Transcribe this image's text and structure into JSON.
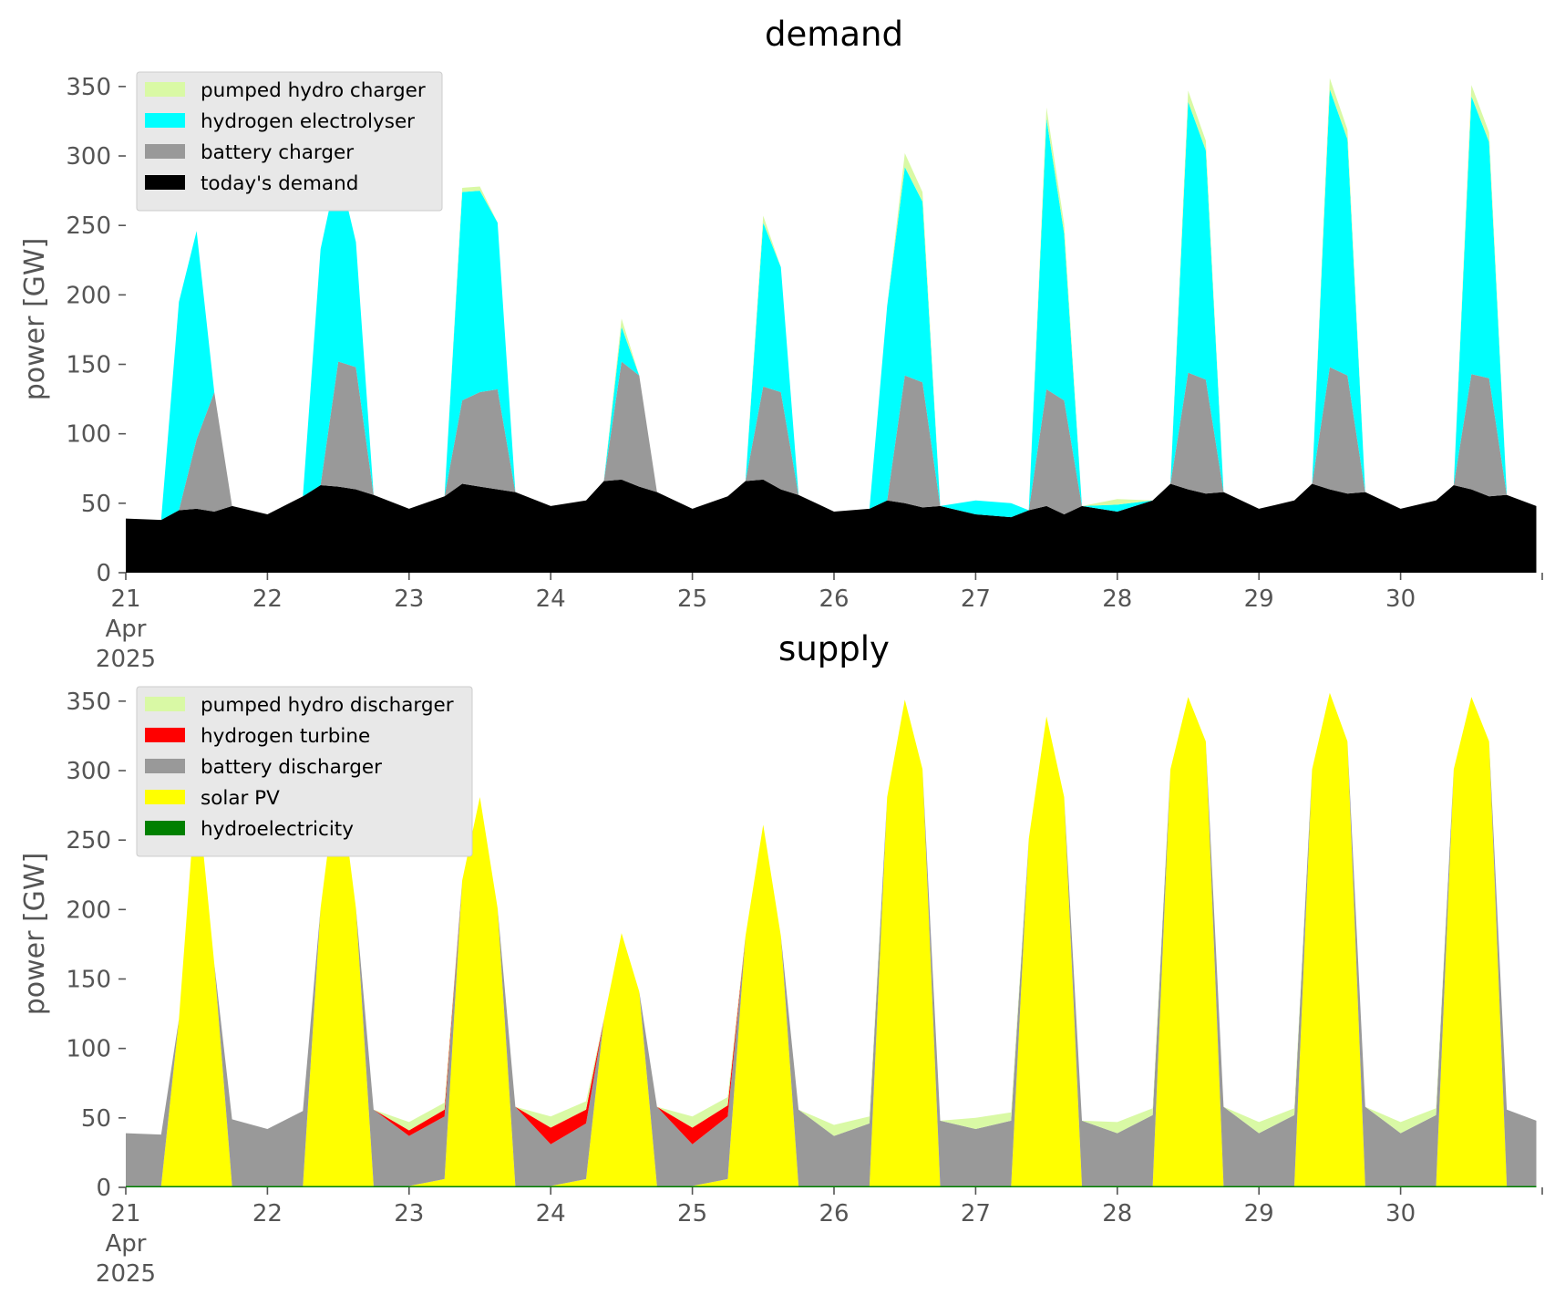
{
  "chart_data": [
    {
      "type": "area",
      "stacked": true,
      "title": "demand",
      "ylabel": "power [GW]",
      "xlabel": "",
      "ylim": [
        0,
        365
      ],
      "yticks": [
        "0",
        "50",
        "100",
        "150",
        "200",
        "250",
        "300",
        "350"
      ],
      "xticks": [
        "21",
        "22",
        "23",
        "24",
        "25",
        "26",
        "27",
        "28",
        "29",
        "30"
      ],
      "xtick_extra": [
        "Apr",
        "2025"
      ],
      "legend_position": "top-left",
      "x": [
        "21 Apr 00:00",
        "21 Apr 06:00",
        "21 Apr 09:00",
        "21 Apr 12:00",
        "21 Apr 15:00",
        "21 Apr 18:00",
        "22 Apr 00:00",
        "22 Apr 06:00",
        "22 Apr 09:00",
        "22 Apr 12:00",
        "22 Apr 15:00",
        "22 Apr 18:00",
        "23 Apr 00:00",
        "23 Apr 06:00",
        "23 Apr 09:00",
        "23 Apr 12:00",
        "23 Apr 15:00",
        "23 Apr 18:00",
        "24 Apr 00:00",
        "24 Apr 06:00",
        "24 Apr 09:00",
        "24 Apr 12:00",
        "24 Apr 15:00",
        "24 Apr 18:00",
        "25 Apr 00:00",
        "25 Apr 06:00",
        "25 Apr 09:00",
        "25 Apr 12:00",
        "25 Apr 15:00",
        "25 Apr 18:00",
        "26 Apr 00:00",
        "26 Apr 06:00",
        "26 Apr 09:00",
        "26 Apr 12:00",
        "26 Apr 15:00",
        "26 Apr 18:00",
        "27 Apr 00:00",
        "27 Apr 06:00",
        "27 Apr 09:00",
        "27 Apr 12:00",
        "27 Apr 15:00",
        "27 Apr 18:00",
        "28 Apr 00:00",
        "28 Apr 06:00",
        "28 Apr 09:00",
        "28 Apr 12:00",
        "28 Apr 15:00",
        "28 Apr 18:00",
        "29 Apr 00:00",
        "29 Apr 06:00",
        "29 Apr 09:00",
        "29 Apr 12:00",
        "29 Apr 15:00",
        "29 Apr 18:00",
        "30 Apr 00:00",
        "30 Apr 06:00",
        "30 Apr 09:00",
        "30 Apr 12:00",
        "30 Apr 15:00",
        "30 Apr 18:00",
        "30 Apr 23:00"
      ],
      "series": [
        {
          "name": "today's demand",
          "color": "#000000",
          "values": [
            39,
            38,
            45,
            46,
            44,
            48,
            42,
            55,
            63,
            62,
            60,
            56,
            46,
            55,
            64,
            62,
            60,
            58,
            48,
            52,
            66,
            67,
            62,
            58,
            46,
            55,
            66,
            67,
            60,
            56,
            44,
            46,
            52,
            50,
            47,
            48,
            42,
            40,
            45,
            48,
            42,
            48,
            44,
            52,
            64,
            60,
            57,
            58,
            46,
            52,
            64,
            60,
            57,
            58,
            46,
            52,
            63,
            60,
            55,
            56,
            48
          ]
        },
        {
          "name": "battery charger",
          "color": "#999999",
          "values": [
            0,
            0,
            0,
            50,
            86,
            0,
            0,
            0,
            0,
            90,
            88,
            0,
            0,
            0,
            60,
            68,
            72,
            0,
            0,
            0,
            0,
            85,
            80,
            0,
            0,
            0,
            0,
            67,
            70,
            0,
            0,
            0,
            0,
            92,
            90,
            0,
            0,
            0,
            0,
            84,
            82,
            0,
            0,
            0,
            0,
            84,
            82,
            0,
            0,
            0,
            0,
            88,
            85,
            0,
            0,
            0,
            0,
            83,
            85,
            0,
            0
          ]
        },
        {
          "name": "hydrogen electrolyser",
          "color": "#00ffff",
          "values": [
            0,
            0,
            150,
            150,
            0,
            0,
            0,
            0,
            170,
            140,
            90,
            0,
            0,
            0,
            150,
            145,
            120,
            0,
            0,
            0,
            0,
            25,
            0,
            0,
            0,
            0,
            0,
            118,
            90,
            0,
            0,
            0,
            140,
            150,
            130,
            0,
            10,
            10,
            0,
            195,
            120,
            0,
            5,
            0,
            0,
            195,
            165,
            0,
            0,
            0,
            0,
            200,
            170,
            0,
            0,
            0,
            0,
            200,
            170,
            0,
            0
          ]
        },
        {
          "name": "pumped hydro charger",
          "color": "#d9f9a5",
          "values": [
            0,
            0,
            0,
            0,
            0,
            0,
            0,
            0,
            0,
            0,
            0,
            0,
            0,
            0,
            3,
            3,
            0,
            0,
            0,
            0,
            0,
            6,
            0,
            0,
            0,
            0,
            0,
            5,
            0,
            0,
            0,
            0,
            0,
            10,
            7,
            0,
            0,
            0,
            0,
            8,
            7,
            0,
            4,
            0,
            0,
            8,
            7,
            0,
            0,
            0,
            0,
            8,
            7,
            0,
            0,
            0,
            0,
            8,
            7,
            0,
            0
          ]
        }
      ]
    },
    {
      "type": "area",
      "stacked": true,
      "title": "supply",
      "ylabel": "power [GW]",
      "xlabel": "",
      "ylim": [
        0,
        365
      ],
      "yticks": [
        "0",
        "50",
        "100",
        "150",
        "200",
        "250",
        "300",
        "350"
      ],
      "xticks": [
        "21",
        "22",
        "23",
        "24",
        "25",
        "26",
        "27",
        "28",
        "29",
        "30"
      ],
      "xtick_extra": [
        "Apr",
        "2025"
      ],
      "legend_position": "top-left",
      "x": [
        "21 Apr 00:00",
        "21 Apr 06:00",
        "21 Apr 09:00",
        "21 Apr 12:00",
        "21 Apr 15:00",
        "21 Apr 18:00",
        "22 Apr 00:00",
        "22 Apr 06:00",
        "22 Apr 09:00",
        "22 Apr 12:00",
        "22 Apr 15:00",
        "22 Apr 18:00",
        "23 Apr 00:00",
        "23 Apr 06:00",
        "23 Apr 09:00",
        "23 Apr 12:00",
        "23 Apr 15:00",
        "23 Apr 18:00",
        "24 Apr 00:00",
        "24 Apr 06:00",
        "24 Apr 09:00",
        "24 Apr 12:00",
        "24 Apr 15:00",
        "24 Apr 18:00",
        "25 Apr 00:00",
        "25 Apr 06:00",
        "25 Apr 09:00",
        "25 Apr 12:00",
        "25 Apr 15:00",
        "25 Apr 18:00",
        "26 Apr 00:00",
        "26 Apr 06:00",
        "26 Apr 09:00",
        "26 Apr 12:00",
        "26 Apr 15:00",
        "26 Apr 18:00",
        "27 Apr 00:00",
        "27 Apr 06:00",
        "27 Apr 09:00",
        "27 Apr 12:00",
        "27 Apr 15:00",
        "27 Apr 18:00",
        "28 Apr 00:00",
        "28 Apr 06:00",
        "28 Apr 09:00",
        "28 Apr 12:00",
        "28 Apr 15:00",
        "28 Apr 18:00",
        "29 Apr 00:00",
        "29 Apr 06:00",
        "29 Apr 09:00",
        "29 Apr 12:00",
        "29 Apr 15:00",
        "29 Apr 18:00",
        "30 Apr 00:00",
        "30 Apr 06:00",
        "30 Apr 09:00",
        "30 Apr 12:00",
        "30 Apr 15:00",
        "30 Apr 18:00",
        "30 Apr 23:00"
      ],
      "series": [
        {
          "name": "hydroelectricity",
          "color": "#008000",
          "values": [
            1,
            1,
            1,
            1,
            1,
            1,
            1,
            1,
            1,
            1,
            1,
            1,
            1,
            1,
            1,
            1,
            1,
            1,
            1,
            1,
            1,
            1,
            1,
            1,
            1,
            1,
            1,
            1,
            1,
            1,
            1,
            1,
            1,
            1,
            1,
            1,
            1,
            1,
            1,
            1,
            1,
            1,
            1,
            1,
            1,
            1,
            1,
            1,
            1,
            1,
            1,
            1,
            1,
            1,
            1,
            1,
            1,
            1,
            1,
            1,
            1
          ]
        },
        {
          "name": "solar PV",
          "color": "#ffff00",
          "values": [
            0,
            0,
            120,
            290,
            160,
            0,
            0,
            0,
            200,
            300,
            200,
            0,
            0,
            5,
            220,
            280,
            200,
            0,
            0,
            5,
            120,
            182,
            140,
            0,
            0,
            5,
            180,
            260,
            180,
            0,
            0,
            0,
            280,
            350,
            300,
            0,
            0,
            0,
            250,
            338,
            280,
            0,
            0,
            0,
            300,
            352,
            320,
            0,
            0,
            0,
            300,
            355,
            320,
            0,
            0,
            0,
            300,
            352,
            320,
            0,
            0
          ]
        },
        {
          "name": "battery discharger",
          "color": "#999999",
          "values": [
            38,
            37,
            0,
            0,
            0,
            48,
            41,
            54,
            0,
            0,
            0,
            55,
            36,
            45,
            0,
            0,
            0,
            57,
            30,
            40,
            0,
            0,
            0,
            57,
            30,
            45,
            0,
            0,
            0,
            55,
            36,
            45,
            0,
            0,
            0,
            47,
            41,
            47,
            0,
            0,
            0,
            47,
            38,
            51,
            0,
            0,
            0,
            57,
            38,
            51,
            0,
            0,
            0,
            57,
            38,
            51,
            0,
            0,
            0,
            55,
            47
          ]
        },
        {
          "name": "hydrogen turbine",
          "color": "#ff0000",
          "values": [
            0,
            0,
            0,
            0,
            0,
            0,
            0,
            0,
            0,
            0,
            0,
            0,
            4,
            5,
            0,
            0,
            0,
            0,
            12,
            10,
            0,
            0,
            0,
            0,
            12,
            8,
            0,
            0,
            0,
            0,
            0,
            0,
            0,
            0,
            0,
            0,
            0,
            0,
            0,
            0,
            0,
            0,
            0,
            0,
            0,
            0,
            0,
            0,
            0,
            0,
            0,
            0,
            0,
            0,
            0,
            0,
            0,
            0,
            0,
            0,
            0
          ]
        },
        {
          "name": "pumped hydro discharger",
          "color": "#d9f9a5",
          "values": [
            0,
            0,
            0,
            0,
            0,
            0,
            0,
            0,
            0,
            0,
            0,
            0,
            6,
            5,
            0,
            0,
            0,
            0,
            8,
            6,
            0,
            0,
            0,
            0,
            8,
            6,
            0,
            0,
            0,
            0,
            8,
            5,
            0,
            0,
            0,
            0,
            8,
            6,
            0,
            0,
            0,
            0,
            8,
            5,
            0,
            0,
            0,
            0,
            8,
            5,
            0,
            0,
            0,
            0,
            8,
            5,
            0,
            0,
            0,
            0,
            0
          ]
        }
      ]
    }
  ]
}
